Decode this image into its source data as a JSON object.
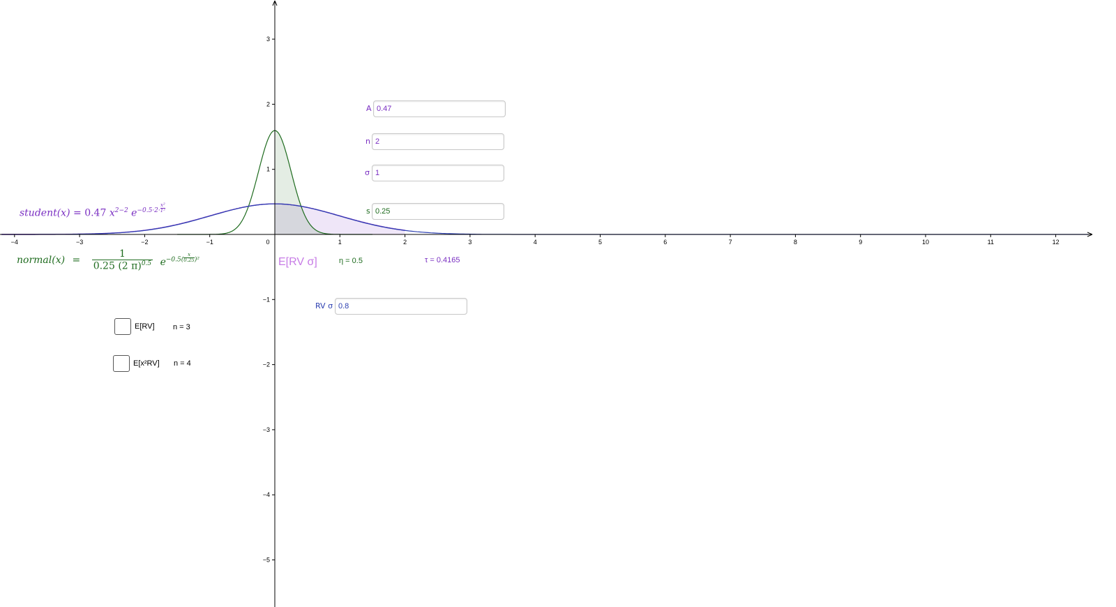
{
  "colors": {
    "purple": "#7a2fc2",
    "green": "#1e6b1e",
    "blue": "#2c3fb0",
    "pink": "#c77ce6",
    "axis": "#000000"
  },
  "chart_data": {
    "type": "line",
    "xlim": [
      -4.2,
      12.5
    ],
    "ylim": [
      -5.5,
      3.55
    ],
    "x_ticks": [
      -4,
      -3,
      -2,
      -1,
      0,
      1,
      2,
      3,
      4,
      5,
      6,
      7,
      8,
      9,
      10,
      11,
      12
    ],
    "y_ticks": [
      -5,
      -4,
      -3,
      -2,
      -1,
      1,
      2,
      3
    ],
    "grid": false,
    "series": [
      {
        "name": "student",
        "color": "#7a2fc2",
        "fill": true,
        "formula": "0.47 exp(-0.5 x^2)"
      },
      {
        "name": "normal",
        "color": "#1e6b1e",
        "fill": true,
        "formula": "1.596 exp(-0.5 (x/0.25)^2)"
      },
      {
        "name": "",
        "color": "#2c3fb0",
        "fill": false,
        "formula": "RV σ curve"
      }
    ]
  },
  "formulas": {
    "student": {
      "lhs": "student(x)",
      "eq": "=",
      "coef": "0.47",
      "base": "x",
      "pow": "2−2",
      "e": "e",
      "exp": "−0.5·2·",
      "frac_num": "x²",
      "frac_den": "1²"
    },
    "normal": {
      "lhs": "normal(x)",
      "eq": "=",
      "num": "1",
      "den": "0.25 (2 π)",
      "den_pow": "0.5",
      "e": "e",
      "exp_pre": "−0.5(",
      "frac_num": "x",
      "frac_den": "0.25",
      "exp_post": ")²"
    }
  },
  "inputs": {
    "A": {
      "label": "A",
      "value": "0.47"
    },
    "n": {
      "label": "n",
      "value": "2"
    },
    "sigma": {
      "label": "σ",
      "value": "1"
    },
    "s": {
      "label": "s",
      "value": "0.25"
    },
    "rv_sigma": {
      "label": "RV σ",
      "value": "0.8"
    }
  },
  "texts": {
    "erv_sigma": "E[RV σ]",
    "eta": "η = 0.5",
    "tau": "τ = 0.4165"
  },
  "checkboxes": [
    {
      "label": "E[RV]",
      "n_text": "n = 3"
    },
    {
      "label": "E[x²RV]",
      "n_text": "n = 4"
    }
  ]
}
